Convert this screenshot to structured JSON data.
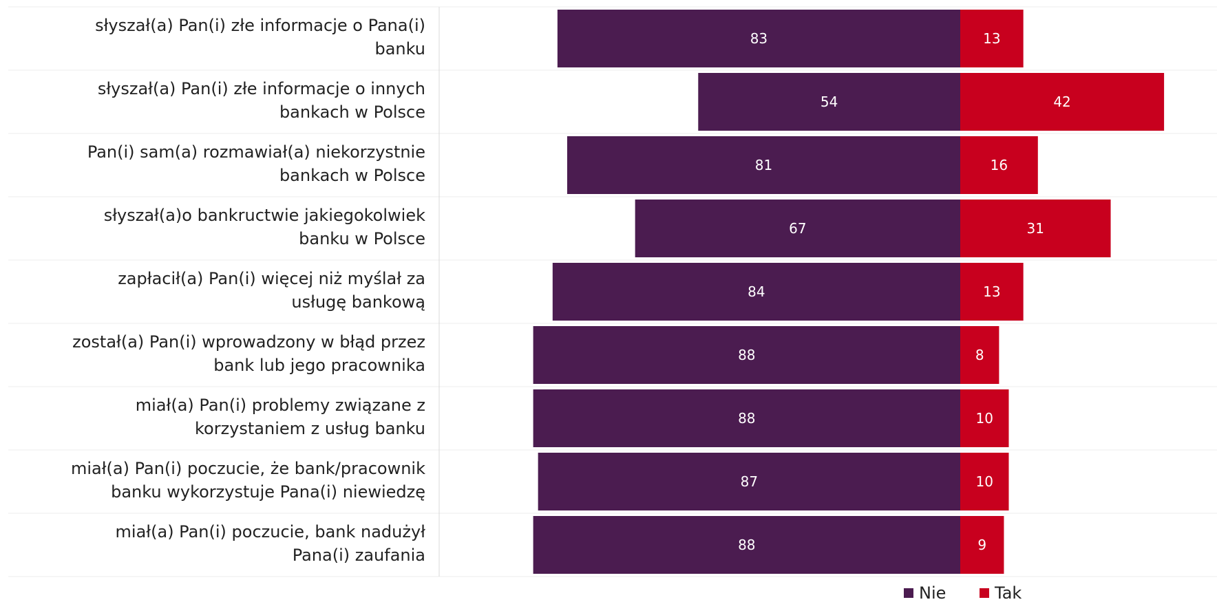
{
  "chart_data": {
    "type": "bar",
    "orientation": "horizontal-diverging",
    "categories": [
      [
        "słyszał(a) Pan(i) złe informacje o Pana(i)",
        "banku"
      ],
      [
        "słyszał(a) Pan(i) złe informacje o innych",
        "bankach w Polsce"
      ],
      [
        "Pan(i) sam(a) rozmawiał(a) niekorzystnie",
        "bankach w Polsce"
      ],
      [
        "słyszał(a)o bankructwie jakiegokolwiek",
        "banku w Polsce"
      ],
      [
        "zapłacił(a) Pan(i) więcej niż myślał za",
        "usługę bankową"
      ],
      [
        "został(a) Pan(i) wprowadzony w błąd przez",
        "bank lub jego pracownika"
      ],
      [
        "miał(a) Pan(i) problemy związane z",
        "korzystaniem z usług banku"
      ],
      [
        "miał(a) Pan(i) poczucie, że bank/pracownik",
        "banku wykorzystuje Pana(i) niewiedzę"
      ],
      [
        "miał(a) Pan(i) poczucie, bank nadużył",
        "Pana(i) zaufania"
      ]
    ],
    "series": [
      {
        "name": "Nie",
        "color": "#4b1c50",
        "values": [
          83,
          54,
          81,
          67,
          84,
          88,
          88,
          87,
          88
        ]
      },
      {
        "name": "Tak",
        "color": "#c8001e",
        "values": [
          13,
          42,
          16,
          31,
          13,
          8,
          10,
          10,
          9
        ]
      }
    ],
    "data_labels": true,
    "legend_position": "bottom-right",
    "grid": false
  }
}
